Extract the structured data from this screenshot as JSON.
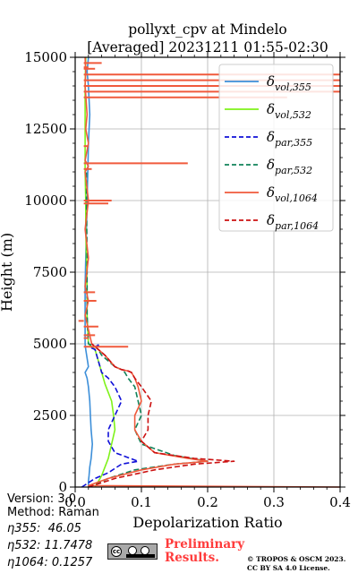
{
  "chart_data": {
    "type": "line",
    "title": "pollyxt_cpv at Mindelo",
    "subtitle": "[Averaged] 20231211 01:55-02:30",
    "xlabel": "Depolarization Ratio",
    "ylabel": "Height (m)",
    "xlim": [
      0.0,
      0.4
    ],
    "ylim": [
      0,
      15000
    ],
    "x_ticks": [
      "0.0",
      "0.1",
      "0.2",
      "0.3",
      "0.4"
    ],
    "y_ticks": [
      "0",
      "2500",
      "5000",
      "7500",
      "10000",
      "12500",
      "15000"
    ],
    "grid": true,
    "legend_position": "top-right",
    "series": [
      {
        "name": "vol,355",
        "color": "#3d8fd9",
        "dash": "solid",
        "x": [
          0.02,
          0.02,
          0.021,
          0.022,
          0.024,
          0.026,
          0.024,
          0.023,
          0.022,
          0.02,
          0.018,
          0.015,
          0.02,
          0.018,
          0.016,
          0.015,
          0.015,
          0.015,
          0.016,
          0.017,
          0.018,
          0.019,
          0.02,
          0.022,
          0.02,
          0.018,
          0.02
        ],
        "y": [
          0,
          200,
          400,
          700,
          1000,
          1500,
          2000,
          2500,
          3000,
          3500,
          3800,
          4000,
          4200,
          4500,
          4800,
          5000,
          6000,
          7000,
          8000,
          9000,
          10000,
          11000,
          12000,
          13000,
          14000,
          14500,
          15000
        ]
      },
      {
        "name": "vol,532",
        "color": "#7ff21a",
        "dash": "solid",
        "x": [
          0.03,
          0.035,
          0.04,
          0.045,
          0.05,
          0.055,
          0.06,
          0.058,
          0.055,
          0.05,
          0.045,
          0.04,
          0.035,
          0.03,
          0.025,
          0.02,
          0.018,
          0.018,
          0.017,
          0.016,
          0.016,
          0.015,
          0.015,
          0.015,
          0.016
        ],
        "y": [
          0,
          200,
          400,
          700,
          1000,
          1500,
          2000,
          2500,
          3000,
          3300,
          3600,
          4000,
          4400,
          4800,
          4900,
          5000,
          6000,
          7000,
          8000,
          9000,
          10000,
          11000,
          12500,
          14000,
          15000
        ]
      },
      {
        "name": "par,355",
        "color": "#1010d8",
        "dash": "6,3",
        "x": [
          0.01,
          0.03,
          0.05,
          0.07,
          0.095,
          0.06,
          0.05,
          0.05,
          0.06,
          0.07,
          0.06,
          0.05,
          0.04,
          0.035,
          0.03,
          0.025,
          0.03,
          0.035,
          0.03
        ],
        "y": [
          0,
          300,
          500,
          800,
          900,
          1200,
          1600,
          2000,
          2500,
          3000,
          3500,
          3800,
          4000,
          4400,
          4800,
          4850,
          4900,
          4950,
          5000
        ]
      },
      {
        "name": "par,532",
        "color": "#11835a",
        "dash": "6,3",
        "x": [
          0.02,
          0.05,
          0.09,
          0.15,
          0.2,
          0.15,
          0.1,
          0.09,
          0.1,
          0.095,
          0.09,
          0.08,
          0.075,
          0.07,
          0.06,
          0.04,
          0.035,
          0.03,
          0.02,
          0.018,
          0.018,
          0.017,
          0.017
        ],
        "y": [
          0,
          300,
          600,
          800,
          900,
          1100,
          1500,
          2000,
          2500,
          3000,
          3500,
          3800,
          4000,
          4100,
          4200,
          4600,
          4800,
          4900,
          5000,
          6000,
          8000,
          10000,
          11000
        ]
      },
      {
        "name": "vol,1064",
        "color": "#f05a3c",
        "dash": "solid",
        "x": [
          0.4,
          0.02,
          0.05,
          0.1,
          0.15,
          0.2,
          0.17,
          0.12,
          0.1,
          0.09,
          0.09,
          0.1,
          0.095,
          0.09,
          0.085,
          0.08,
          0.07,
          0.06,
          0.045,
          0.035,
          0.03,
          0.025,
          0.02,
          0.015,
          0.02,
          0.015,
          0.02,
          0.015,
          0.02,
          0.015,
          0.02,
          0.015,
          0.02,
          0.016,
          0.018,
          0.015,
          0.016,
          0.015
        ],
        "y": [
          0,
          50,
          300,
          600,
          800,
          900,
          1000,
          1200,
          1600,
          2000,
          2500,
          3000,
          3500,
          3800,
          4000,
          4050,
          4100,
          4200,
          4600,
          4800,
          4900,
          5000,
          5500,
          6000,
          6500,
          7000,
          8000,
          9000,
          10000,
          11000,
          11200,
          11400,
          12000,
          12500,
          13000,
          14000,
          14500,
          15000
        ]
      },
      {
        "name": "par,1064",
        "color": "#cc1111",
        "dash": "6,3",
        "x": [
          0.02,
          0.06,
          0.12,
          0.18,
          0.24,
          0.18,
          0.12,
          0.1,
          0.11,
          0.11,
          0.115,
          0.1,
          0.09,
          0.085,
          0.08,
          0.07,
          0.06,
          0.045,
          0.035,
          0.03,
          0.025
        ],
        "y": [
          0,
          300,
          600,
          800,
          900,
          1000,
          1200,
          1600,
          2000,
          2500,
          3000,
          3500,
          3800,
          4000,
          4050,
          4100,
          4200,
          4600,
          4800,
          4900,
          5000
        ]
      }
    ],
    "noise_spikes": [
      {
        "y": 4900,
        "x": 0.08
      },
      {
        "y": 5200,
        "x": 0.02
      },
      {
        "y": 5300,
        "x": 0.03
      },
      {
        "y": 5600,
        "x": 0.035
      },
      {
        "y": 5800,
        "x": 0.005
      },
      {
        "y": 6500,
        "x": 0.032
      },
      {
        "y": 6800,
        "x": 0.03
      },
      {
        "y": 9900,
        "x": 0.05
      },
      {
        "y": 10000,
        "x": 0.055
      },
      {
        "y": 11100,
        "x": 0.025
      },
      {
        "y": 11300,
        "x": 0.17
      },
      {
        "y": 11900,
        "x": 0.02
      },
      {
        "y": 13600,
        "x": 0.32
      },
      {
        "y": 13800,
        "x": 0.4
      },
      {
        "y": 14000,
        "x": 0.4
      },
      {
        "y": 14200,
        "x": 0.4
      },
      {
        "y": 14400,
        "x": 0.4
      },
      {
        "y": 14600,
        "x": 0.03
      },
      {
        "y": 14800,
        "x": 0.04
      },
      {
        "y": 14650,
        "x": 0.02
      }
    ],
    "legend": [
      {
        "symbol": "δ",
        "sub": "vol,355",
        "color": "#3d8fd9",
        "dash": "solid"
      },
      {
        "symbol": "δ",
        "sub": "vol,532",
        "color": "#7ff21a",
        "dash": "solid"
      },
      {
        "symbol": "δ",
        "sub": "par,355",
        "color": "#1010d8",
        "dash": "dashed"
      },
      {
        "symbol": "δ",
        "sub": "par,532",
        "color": "#11835a",
        "dash": "dashed"
      },
      {
        "symbol": "δ",
        "sub": "vol,1064",
        "color": "#f05a3c",
        "dash": "solid"
      },
      {
        "symbol": "δ",
        "sub": "par,1064",
        "color": "#cc1111",
        "dash": "dashed"
      }
    ]
  },
  "footer": {
    "version": "Version: 3.0",
    "method": "Method: Raman",
    "eta355": "η355:  46.05",
    "eta532": "η532: 11.7478",
    "eta1064": "η1064: 0.1257",
    "cc_label": "cc",
    "preliminary_line1": "Preliminary",
    "preliminary_line2": "Results.",
    "copyright_line1": "© TROPOS & OSCM 2023.",
    "copyright_line2": "CC BY SA 4.0 License."
  }
}
